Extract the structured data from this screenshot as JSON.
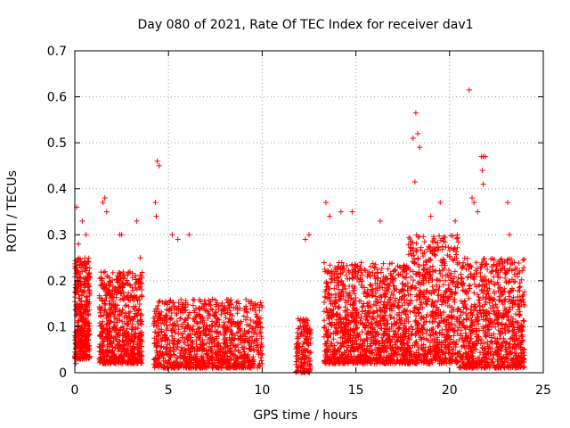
{
  "chart_data": {
    "type": "scatter",
    "title": "Day 080 of 2021, Rate Of TEC Index for receiver dav1",
    "xlabel": "GPS time / hours",
    "ylabel": "ROTI / TECUs",
    "xlim": [
      0,
      25
    ],
    "ylim": [
      0,
      0.7
    ],
    "xticks": [
      0,
      5,
      10,
      15,
      20,
      25
    ],
    "yticks": [
      0,
      0.1,
      0.2,
      0.3,
      0.4,
      0.5,
      0.6,
      0.7
    ],
    "xtick_labels": [
      "0",
      "5",
      "10",
      "15",
      "20",
      "25"
    ],
    "ytick_labels": [
      "0",
      "0.1",
      "0.2",
      "0.3",
      "0.4",
      "0.5",
      "0.6",
      "0.7"
    ],
    "grid": true,
    "marker": "+",
    "marker_color": "#ff0000",
    "series": [
      {
        "name": "ROTI",
        "clusters": [
          {
            "x_range": [
              0.0,
              0.8
            ],
            "y_range": [
              0.03,
              0.25
            ],
            "count": 420
          },
          {
            "x_range": [
              1.3,
              3.6
            ],
            "y_range": [
              0.02,
              0.22
            ],
            "count": 700
          },
          {
            "x_range": [
              4.2,
              10.0
            ],
            "y_range": [
              0.01,
              0.16
            ],
            "count": 1100
          },
          {
            "x_range": [
              11.8,
              12.6
            ],
            "y_range": [
              0.0,
              0.12
            ],
            "count": 160
          },
          {
            "x_range": [
              13.3,
              17.8
            ],
            "y_range": [
              0.02,
              0.24
            ],
            "count": 1200
          },
          {
            "x_range": [
              17.8,
              20.5
            ],
            "y_range": [
              0.02,
              0.3
            ],
            "count": 700
          },
          {
            "x_range": [
              20.5,
              24.0
            ],
            "y_range": [
              0.01,
              0.25
            ],
            "count": 900
          }
        ],
        "points": [
          [
            0.05,
            0.02
          ],
          [
            0.1,
            0.36
          ],
          [
            0.2,
            0.28
          ],
          [
            0.4,
            0.33
          ],
          [
            0.6,
            0.3
          ],
          [
            1.5,
            0.37
          ],
          [
            1.6,
            0.38
          ],
          [
            1.7,
            0.35
          ],
          [
            2.4,
            0.3
          ],
          [
            2.5,
            0.3
          ],
          [
            3.3,
            0.33
          ],
          [
            3.5,
            0.25
          ],
          [
            4.3,
            0.37
          ],
          [
            4.4,
            0.46
          ],
          [
            4.5,
            0.45
          ],
          [
            4.35,
            0.34
          ],
          [
            5.2,
            0.3
          ],
          [
            5.5,
            0.29
          ],
          [
            6.1,
            0.3
          ],
          [
            12.3,
            0.29
          ],
          [
            12.5,
            0.3
          ],
          [
            13.4,
            0.37
          ],
          [
            13.6,
            0.34
          ],
          [
            14.2,
            0.35
          ],
          [
            14.8,
            0.35
          ],
          [
            16.3,
            0.33
          ],
          [
            18.05,
            0.51
          ],
          [
            18.2,
            0.565
          ],
          [
            18.3,
            0.52
          ],
          [
            18.4,
            0.49
          ],
          [
            18.15,
            0.415
          ],
          [
            19.0,
            0.34
          ],
          [
            19.5,
            0.37
          ],
          [
            20.3,
            0.33
          ],
          [
            21.05,
            0.615
          ],
          [
            21.2,
            0.38
          ],
          [
            21.3,
            0.37
          ],
          [
            21.5,
            0.35
          ],
          [
            21.7,
            0.47
          ],
          [
            21.8,
            0.47
          ],
          [
            21.9,
            0.47
          ],
          [
            21.75,
            0.44
          ],
          [
            21.8,
            0.41
          ],
          [
            23.1,
            0.37
          ],
          [
            23.2,
            0.3
          ],
          [
            23.8,
            0.1
          ]
        ]
      }
    ]
  }
}
